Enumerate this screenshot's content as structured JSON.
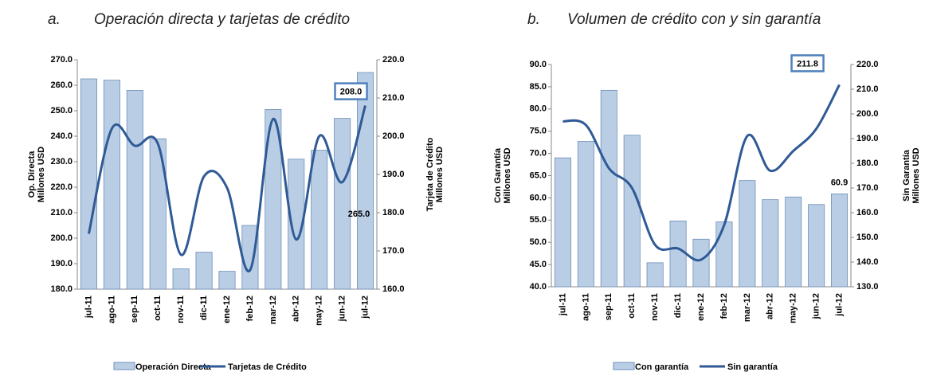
{
  "chart_data": [
    {
      "type": "combo",
      "label": "a.",
      "title": "Operación directa y tarjetas de crédito",
      "ylabel": [
        "Op. Directa",
        "Millones USD"
      ],
      "y2label": [
        "Tarjeta de Crédito",
        "Millones USD"
      ],
      "categories": [
        "jul-11",
        "ago-11",
        "sep-11",
        "oct-11",
        "nov-11",
        "dic-11",
        "ene-12",
        "feb-12",
        "mar-12",
        "abr-12",
        "may-12",
        "jun-12",
        "jul-12"
      ],
      "ylim": [
        180,
        270
      ],
      "yticks": [
        {
          "value": 180,
          "label": "180.0"
        },
        {
          "value": 190,
          "label": "190.0"
        },
        {
          "value": 200,
          "label": "200.0"
        },
        {
          "value": 210,
          "label": "210.0"
        },
        {
          "value": 220,
          "label": "220.0"
        },
        {
          "value": 230,
          "label": "230.0"
        },
        {
          "value": 240,
          "label": "240.0"
        },
        {
          "value": 250,
          "label": "250.0"
        },
        {
          "value": 260,
          "label": "260.0"
        },
        {
          "value": 270,
          "label": "270.0"
        }
      ],
      "y2lim": [
        160,
        220
      ],
      "y2ticks": [
        {
          "value": 160,
          "label": "160.0"
        },
        {
          "value": 170,
          "label": "170.0"
        },
        {
          "value": 180,
          "label": "180.0"
        },
        {
          "value": 190,
          "label": "190.0"
        },
        {
          "value": 200,
          "label": "200.0"
        },
        {
          "value": 210,
          "label": "210.0"
        },
        {
          "value": 220,
          "label": "220.0"
        }
      ],
      "series": [
        {
          "name": "Operación Directa",
          "type": "bar",
          "color": "#b9cde5",
          "values": [
            262.5,
            262,
            258,
            239,
            188,
            194.5,
            187,
            205,
            250.5,
            231,
            234.5,
            247,
            265
          ],
          "value_labels": [
            null,
            null,
            null,
            null,
            null,
            null,
            null,
            null,
            null,
            null,
            null,
            null,
            "265.0"
          ]
        },
        {
          "name": "Tarjetas de Crédito",
          "type": "line",
          "axis": "y2",
          "color": "#2f5a95",
          "values": [
            174.5,
            202,
            197.5,
            198,
            169,
            189.5,
            186.5,
            165,
            204.5,
            173,
            200,
            188,
            208
          ],
          "value_labels": [
            null,
            null,
            null,
            null,
            null,
            null,
            null,
            null,
            null,
            null,
            null,
            null,
            "208.0"
          ]
        }
      ]
    },
    {
      "type": "combo",
      "label": "b.",
      "title": "Volumen de crédito con y sin garantía",
      "ylabel": [
        "Con Garantía",
        "Millones USD"
      ],
      "y2label": [
        "Sin Garantía",
        "Millones USD"
      ],
      "categories": [
        "jul-11",
        "ago-11",
        "sep-11",
        "oct-11",
        "nov-11",
        "dic-11",
        "ene-12",
        "feb-12",
        "mar-12",
        "abr-12",
        "may-12",
        "jun-12",
        "jul-12"
      ],
      "ylim": [
        40,
        90
      ],
      "yticks": [
        {
          "value": 40,
          "label": "40.0"
        },
        {
          "value": 45,
          "label": "45.0"
        },
        {
          "value": 50,
          "label": "50.0"
        },
        {
          "value": 55,
          "label": "55.0"
        },
        {
          "value": 60,
          "label": "60.0"
        },
        {
          "value": 65,
          "label": "65.0"
        },
        {
          "value": 70,
          "label": "70.0"
        },
        {
          "value": 75,
          "label": "75.0"
        },
        {
          "value": 80,
          "label": "80.0"
        },
        {
          "value": 85,
          "label": "85.0"
        },
        {
          "value": 90,
          "label": "90.0"
        }
      ],
      "y2lim": [
        130,
        220
      ],
      "y2ticks": [
        {
          "value": 130,
          "label": "130.0"
        },
        {
          "value": 140,
          "label": "140.0"
        },
        {
          "value": 150,
          "label": "150.0"
        },
        {
          "value": 160,
          "label": "160.0"
        },
        {
          "value": 170,
          "label": "170.0"
        },
        {
          "value": 180,
          "label": "180.0"
        },
        {
          "value": 190,
          "label": "190.0"
        },
        {
          "value": 200,
          "label": "200.0"
        },
        {
          "value": 210,
          "label": "210.0"
        },
        {
          "value": 220,
          "label": "220.0"
        }
      ],
      "series": [
        {
          "name": "Con garantía",
          "type": "bar",
          "color": "#b9cde5",
          "values": [
            69,
            72.7,
            84.2,
            74.1,
            45.4,
            54.8,
            50.7,
            54.6,
            63.9,
            59.6,
            60.2,
            58.5,
            60.9
          ],
          "value_labels": [
            null,
            null,
            null,
            null,
            null,
            null,
            null,
            null,
            null,
            null,
            null,
            null,
            "60.9"
          ]
        },
        {
          "name": "Sin garantía",
          "type": "line",
          "axis": "y2",
          "color": "#2f5a95",
          "values": [
            197,
            195.5,
            178,
            170,
            147,
            145.5,
            141,
            155,
            191,
            177,
            185,
            194,
            211.8
          ],
          "value_labels": [
            null,
            null,
            null,
            null,
            null,
            null,
            null,
            null,
            null,
            null,
            null,
            null,
            "211.8"
          ]
        }
      ]
    }
  ]
}
